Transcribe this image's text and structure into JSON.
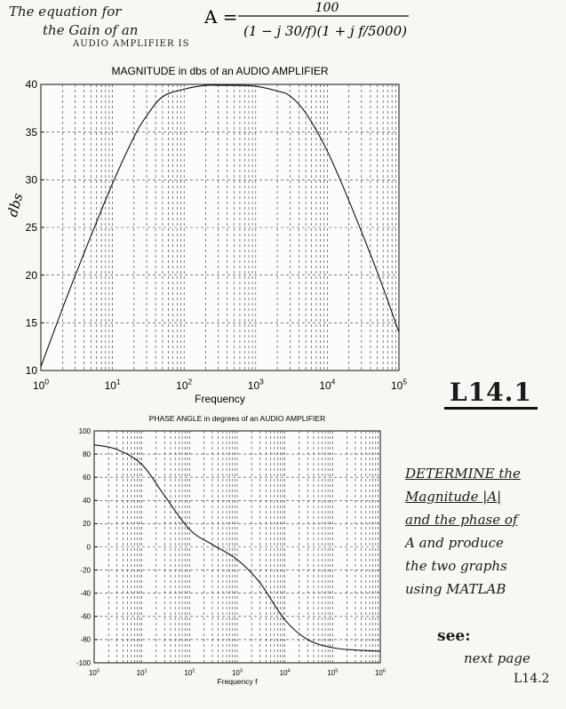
{
  "notes": {
    "equation_line1": "The equation for",
    "equation_line2": "the Gain of an",
    "equation_line3": "AUDIO AMPLIFIER IS",
    "formula_lhs": "A =",
    "formula_numerator": "100",
    "formula_denominator": "(1 − j 30/f)(1 + j f/5000)",
    "label_page": "L14.1",
    "instruction_lines": [
      "DETERMINE the",
      "Magnitude |A|",
      "and the phase of",
      "A  and produce",
      "the two graphs",
      "using MATLAB"
    ],
    "see": "see:",
    "next_page": "next page",
    "next_page_ref": "L14.2"
  },
  "chart_data": [
    {
      "type": "line",
      "title": "MAGNITUDE in dbs  of an AUDIO AMPLIFIER",
      "xlabel": "Frequency",
      "ylabel": "dbs",
      "xscale": "log",
      "xlim": [
        1,
        100000
      ],
      "ylim": [
        10,
        40
      ],
      "yticks": [
        10,
        15,
        20,
        25,
        30,
        35,
        40
      ],
      "xtick_labels": [
        "10^0",
        "10^1",
        "10^2",
        "10^3",
        "10^4",
        "10^5"
      ],
      "grid": true,
      "series": [
        {
          "x": [
            1,
            2,
            3,
            5,
            10,
            20,
            30,
            50,
            100,
            200,
            300,
            500,
            1000,
            2000,
            3000,
            5000,
            10000,
            20000,
            50000,
            100000
          ],
          "y": [
            10.4,
            16.5,
            19.9,
            24.1,
            29.6,
            34.5,
            36.7,
            38.7,
            39.5,
            39.9,
            39.9,
            39.9,
            39.8,
            39.3,
            38.8,
            37.0,
            33.0,
            27.8,
            20.3,
            14.0
          ]
        }
      ]
    },
    {
      "type": "line",
      "title": "PHASE ANGLE in degrees  of an AUDIO AMPLIFIER",
      "xlabel": "Frequency f",
      "ylabel": "",
      "xscale": "log",
      "xlim": [
        1,
        1000000
      ],
      "ylim": [
        -100,
        100
      ],
      "yticks": [
        -100,
        -80,
        -60,
        -40,
        -20,
        0,
        20,
        40,
        60,
        80,
        100
      ],
      "xtick_labels": [
        "10^0",
        "10^1",
        "10^2",
        "10^3",
        "10^4",
        "10^5",
        "10^6"
      ],
      "grid": true,
      "series": [
        {
          "x": [
            1,
            3,
            10,
            30,
            100,
            300,
            1000,
            3000,
            10000,
            30000,
            100000,
            300000,
            1000000
          ],
          "y": [
            88,
            84,
            71,
            44,
            15,
            2,
            -11,
            -31,
            -63,
            -80,
            -87,
            -89,
            -90
          ]
        }
      ]
    }
  ]
}
